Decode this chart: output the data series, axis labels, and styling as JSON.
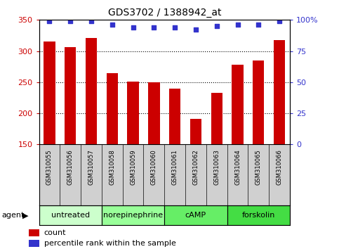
{
  "title": "GDS3702 / 1388942_at",
  "samples": [
    "GSM310055",
    "GSM310056",
    "GSM310057",
    "GSM310058",
    "GSM310059",
    "GSM310060",
    "GSM310061",
    "GSM310062",
    "GSM310063",
    "GSM310064",
    "GSM310065",
    "GSM310066"
  ],
  "bar_values": [
    315,
    306,
    321,
    265,
    251,
    250,
    240,
    191,
    233,
    278,
    285,
    318
  ],
  "dot_values": [
    99,
    99,
    99,
    96,
    94,
    94,
    94,
    92,
    95,
    96,
    96,
    99
  ],
  "bar_color": "#cc0000",
  "dot_color": "#3333cc",
  "ylim_left": [
    150,
    350
  ],
  "ylim_right": [
    0,
    100
  ],
  "yticks_left": [
    150,
    200,
    250,
    300,
    350
  ],
  "yticks_right": [
    0,
    25,
    50,
    75,
    100
  ],
  "ytick_labels_right": [
    "0",
    "25",
    "50",
    "75",
    "100%"
  ],
  "grid_values": [
    200,
    250,
    300
  ],
  "agent_groups": [
    {
      "label": "untreated",
      "start": 0,
      "end": 3,
      "color": "#ccffcc"
    },
    {
      "label": "norepinephrine",
      "start": 3,
      "end": 6,
      "color": "#99ff99"
    },
    {
      "label": "cAMP",
      "start": 6,
      "end": 9,
      "color": "#66ee66"
    },
    {
      "label": "forskolin",
      "start": 9,
      "end": 12,
      "color": "#44dd44"
    }
  ],
  "agent_label": "agent",
  "tick_area_color": "#d0d0d0",
  "bg_color": "#ffffff"
}
